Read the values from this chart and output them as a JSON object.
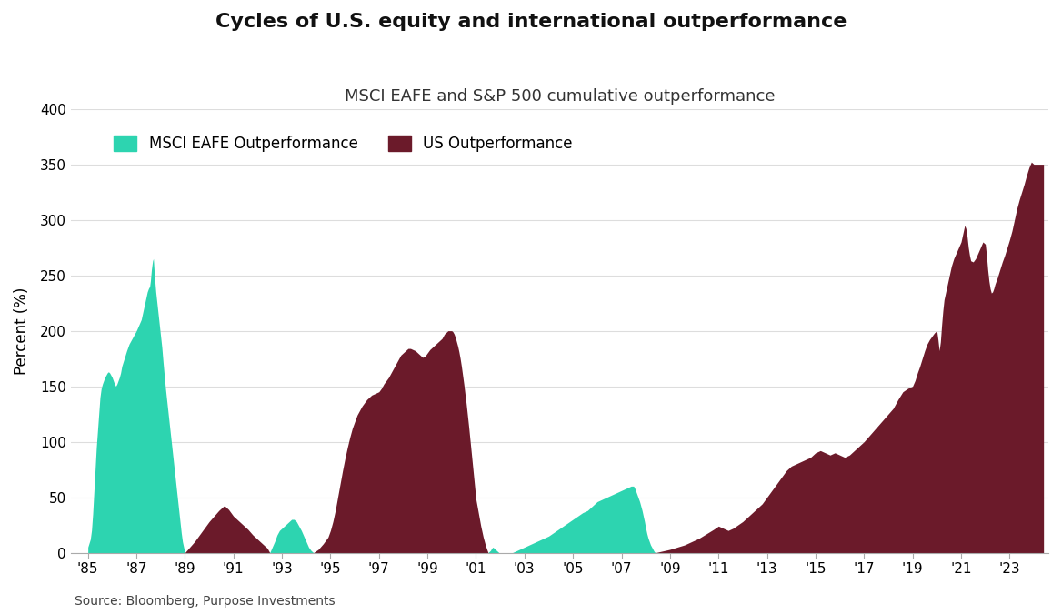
{
  "title": "Cycles of U.S. equity and international outperformance",
  "subtitle": "MSCI EAFE and S&P 500 cumulative outperformance",
  "ylabel": "Percent (%)",
  "source": "Source: Bloomberg, Purpose Investments",
  "eafe_color": "#2DD4B0",
  "us_color": "#6B1A2A",
  "background_color": "#FFFFFF",
  "ylim": [
    0,
    400
  ],
  "yticks": [
    0,
    50,
    100,
    150,
    200,
    250,
    300,
    350,
    400
  ],
  "xtick_labels": [
    "'85",
    "'87",
    "'89",
    "'91",
    "'93",
    "'95",
    "'97",
    "'99",
    "'01",
    "'03",
    "'05",
    "'07",
    "'09",
    "'11",
    "'13",
    "'15",
    "'17",
    "'19",
    "'21",
    "'23"
  ],
  "xtick_years": [
    1985,
    1987,
    1989,
    1991,
    1993,
    1995,
    1997,
    1999,
    2001,
    2003,
    2005,
    2007,
    2009,
    2011,
    2013,
    2015,
    2017,
    2019,
    2021,
    2023
  ],
  "legend_eafe": "MSCI EAFE Outperformance",
  "legend_us": "US Outperformance",
  "eafe_profile": [
    [
      1985.0,
      5
    ],
    [
      1985.1,
      12
    ],
    [
      1985.15,
      20
    ],
    [
      1985.2,
      35
    ],
    [
      1985.25,
      55
    ],
    [
      1985.3,
      75
    ],
    [
      1985.35,
      95
    ],
    [
      1985.4,
      110
    ],
    [
      1985.45,
      125
    ],
    [
      1985.5,
      140
    ],
    [
      1985.55,
      148
    ],
    [
      1985.6,
      152
    ],
    [
      1985.65,
      155
    ],
    [
      1985.7,
      158
    ],
    [
      1985.75,
      160
    ],
    [
      1985.8,
      162
    ],
    [
      1985.85,
      163
    ],
    [
      1985.9,
      162
    ],
    [
      1985.95,
      160
    ],
    [
      1986.0,
      158
    ],
    [
      1986.05,
      155
    ],
    [
      1986.1,
      152
    ],
    [
      1986.15,
      150
    ],
    [
      1986.2,
      152
    ],
    [
      1986.25,
      155
    ],
    [
      1986.3,
      158
    ],
    [
      1986.35,
      162
    ],
    [
      1986.4,
      168
    ],
    [
      1986.5,
      175
    ],
    [
      1986.6,
      182
    ],
    [
      1986.7,
      188
    ],
    [
      1986.8,
      192
    ],
    [
      1986.9,
      196
    ],
    [
      1987.0,
      200
    ],
    [
      1987.1,
      205
    ],
    [
      1987.2,
      210
    ],
    [
      1987.25,
      215
    ],
    [
      1987.3,
      220
    ],
    [
      1987.35,
      225
    ],
    [
      1987.4,
      230
    ],
    [
      1987.45,
      235
    ],
    [
      1987.5,
      238
    ],
    [
      1987.55,
      240
    ],
    [
      1987.58,
      245
    ],
    [
      1987.6,
      250
    ],
    [
      1987.62,
      255
    ],
    [
      1987.65,
      260
    ],
    [
      1987.67,
      263
    ],
    [
      1987.7,
      265
    ],
    [
      1987.72,
      258
    ],
    [
      1987.75,
      248
    ],
    [
      1987.8,
      235
    ],
    [
      1987.85,
      225
    ],
    [
      1987.9,
      215
    ],
    [
      1987.95,
      205
    ],
    [
      1988.0,
      195
    ],
    [
      1988.05,
      185
    ],
    [
      1988.1,
      172
    ],
    [
      1988.15,
      160
    ],
    [
      1988.2,
      148
    ],
    [
      1988.25,
      138
    ],
    [
      1988.3,
      128
    ],
    [
      1988.35,
      118
    ],
    [
      1988.4,
      108
    ],
    [
      1988.45,
      98
    ],
    [
      1988.5,
      88
    ],
    [
      1988.55,
      78
    ],
    [
      1988.6,
      68
    ],
    [
      1988.65,
      58
    ],
    [
      1988.7,
      48
    ],
    [
      1988.75,
      38
    ],
    [
      1988.8,
      28
    ],
    [
      1988.85,
      18
    ],
    [
      1988.9,
      10
    ],
    [
      1988.95,
      5
    ],
    [
      1989.0,
      0
    ],
    [
      1992.5,
      0
    ],
    [
      1992.6,
      5
    ],
    [
      1992.7,
      10
    ],
    [
      1992.8,
      16
    ],
    [
      1992.9,
      20
    ],
    [
      1993.0,
      22
    ],
    [
      1993.1,
      24
    ],
    [
      1993.2,
      26
    ],
    [
      1993.3,
      28
    ],
    [
      1993.4,
      30
    ],
    [
      1993.45,
      30
    ],
    [
      1993.5,
      30
    ],
    [
      1993.6,
      28
    ],
    [
      1993.7,
      24
    ],
    [
      1993.8,
      20
    ],
    [
      1993.9,
      15
    ],
    [
      1994.0,
      10
    ],
    [
      1994.1,
      5
    ],
    [
      1994.2,
      2
    ],
    [
      1994.3,
      0
    ],
    [
      2001.5,
      0
    ],
    [
      2001.55,
      1
    ],
    [
      2001.6,
      2
    ],
    [
      2001.65,
      4
    ],
    [
      2001.7,
      5
    ],
    [
      2001.75,
      4
    ],
    [
      2001.8,
      3
    ],
    [
      2001.85,
      2
    ],
    [
      2001.9,
      1
    ],
    [
      2001.95,
      0
    ],
    [
      2002.5,
      0
    ],
    [
      2002.7,
      2
    ],
    [
      2002.9,
      4
    ],
    [
      2003.0,
      5
    ],
    [
      2003.2,
      7
    ],
    [
      2003.4,
      9
    ],
    [
      2003.6,
      11
    ],
    [
      2003.8,
      13
    ],
    [
      2004.0,
      15
    ],
    [
      2004.2,
      18
    ],
    [
      2004.4,
      21
    ],
    [
      2004.6,
      24
    ],
    [
      2004.8,
      27
    ],
    [
      2005.0,
      30
    ],
    [
      2005.2,
      33
    ],
    [
      2005.4,
      36
    ],
    [
      2005.5,
      37
    ],
    [
      2005.6,
      38
    ],
    [
      2005.7,
      40
    ],
    [
      2005.8,
      42
    ],
    [
      2005.9,
      44
    ],
    [
      2006.0,
      46
    ],
    [
      2006.1,
      47
    ],
    [
      2006.2,
      48
    ],
    [
      2006.3,
      49
    ],
    [
      2006.4,
      50
    ],
    [
      2006.5,
      51
    ],
    [
      2006.6,
      52
    ],
    [
      2006.7,
      53
    ],
    [
      2006.8,
      54
    ],
    [
      2006.9,
      55
    ],
    [
      2007.0,
      56
    ],
    [
      2007.1,
      57
    ],
    [
      2007.2,
      58
    ],
    [
      2007.3,
      59
    ],
    [
      2007.4,
      60
    ],
    [
      2007.5,
      60
    ],
    [
      2007.55,
      58
    ],
    [
      2007.6,
      55
    ],
    [
      2007.65,
      52
    ],
    [
      2007.7,
      49
    ],
    [
      2007.75,
      46
    ],
    [
      2007.8,
      42
    ],
    [
      2007.85,
      38
    ],
    [
      2007.9,
      33
    ],
    [
      2007.95,
      28
    ],
    [
      2008.0,
      22
    ],
    [
      2008.05,
      17
    ],
    [
      2008.1,
      13
    ],
    [
      2008.15,
      10
    ],
    [
      2008.2,
      7
    ],
    [
      2008.25,
      5
    ],
    [
      2008.3,
      3
    ],
    [
      2008.35,
      1
    ],
    [
      2008.4,
      0
    ]
  ],
  "us_profile": [
    [
      1989.0,
      0
    ],
    [
      1989.2,
      5
    ],
    [
      1989.4,
      10
    ],
    [
      1989.6,
      16
    ],
    [
      1989.8,
      22
    ],
    [
      1990.0,
      28
    ],
    [
      1990.2,
      33
    ],
    [
      1990.4,
      38
    ],
    [
      1990.5,
      40
    ],
    [
      1990.6,
      42
    ],
    [
      1990.65,
      42
    ],
    [
      1990.7,
      41
    ],
    [
      1990.8,
      39
    ],
    [
      1990.9,
      36
    ],
    [
      1991.0,
      33
    ],
    [
      1991.2,
      29
    ],
    [
      1991.4,
      25
    ],
    [
      1991.6,
      21
    ],
    [
      1991.8,
      16
    ],
    [
      1992.0,
      12
    ],
    [
      1992.2,
      8
    ],
    [
      1992.4,
      4
    ],
    [
      1992.5,
      0
    ],
    [
      1994.3,
      0
    ],
    [
      1994.5,
      3
    ],
    [
      1994.7,
      8
    ],
    [
      1994.9,
      14
    ],
    [
      1995.0,
      20
    ],
    [
      1995.1,
      28
    ],
    [
      1995.2,
      38
    ],
    [
      1995.3,
      50
    ],
    [
      1995.4,
      62
    ],
    [
      1995.5,
      74
    ],
    [
      1995.6,
      85
    ],
    [
      1995.7,
      95
    ],
    [
      1995.8,
      104
    ],
    [
      1995.9,
      112
    ],
    [
      1996.0,
      118
    ],
    [
      1996.1,
      124
    ],
    [
      1996.2,
      128
    ],
    [
      1996.3,
      132
    ],
    [
      1996.4,
      135
    ],
    [
      1996.5,
      138
    ],
    [
      1996.6,
      140
    ],
    [
      1996.7,
      142
    ],
    [
      1996.8,
      143
    ],
    [
      1996.9,
      144
    ],
    [
      1997.0,
      145
    ],
    [
      1997.1,
      148
    ],
    [
      1997.2,
      152
    ],
    [
      1997.3,
      155
    ],
    [
      1997.4,
      158
    ],
    [
      1997.5,
      162
    ],
    [
      1997.6,
      166
    ],
    [
      1997.7,
      170
    ],
    [
      1997.8,
      174
    ],
    [
      1997.9,
      178
    ],
    [
      1998.0,
      180
    ],
    [
      1998.1,
      182
    ],
    [
      1998.2,
      184
    ],
    [
      1998.3,
      184
    ],
    [
      1998.4,
      183
    ],
    [
      1998.5,
      182
    ],
    [
      1998.6,
      180
    ],
    [
      1998.7,
      178
    ],
    [
      1998.8,
      176
    ],
    [
      1998.9,
      177
    ],
    [
      1999.0,
      180
    ],
    [
      1999.1,
      183
    ],
    [
      1999.2,
      185
    ],
    [
      1999.3,
      187
    ],
    [
      1999.4,
      189
    ],
    [
      1999.5,
      191
    ],
    [
      1999.6,
      193
    ],
    [
      1999.65,
      195
    ],
    [
      1999.7,
      197
    ],
    [
      1999.75,
      198
    ],
    [
      1999.8,
      199
    ],
    [
      1999.85,
      200
    ],
    [
      1999.9,
      200
    ],
    [
      2000.0,
      200
    ],
    [
      2000.05,
      199
    ],
    [
      2000.1,
      197
    ],
    [
      2000.15,
      194
    ],
    [
      2000.2,
      190
    ],
    [
      2000.25,
      186
    ],
    [
      2000.3,
      181
    ],
    [
      2000.35,
      175
    ],
    [
      2000.4,
      168
    ],
    [
      2000.45,
      160
    ],
    [
      2000.5,
      152
    ],
    [
      2000.55,
      143
    ],
    [
      2000.6,
      134
    ],
    [
      2000.65,
      124
    ],
    [
      2000.7,
      114
    ],
    [
      2000.75,
      103
    ],
    [
      2000.8,
      92
    ],
    [
      2000.85,
      81
    ],
    [
      2000.9,
      70
    ],
    [
      2000.95,
      59
    ],
    [
      2001.0,
      48
    ],
    [
      2001.1,
      36
    ],
    [
      2001.2,
      24
    ],
    [
      2001.3,
      14
    ],
    [
      2001.4,
      6
    ],
    [
      2001.5,
      0
    ],
    [
      2008.4,
      0
    ],
    [
      2008.6,
      1
    ],
    [
      2008.8,
      2
    ],
    [
      2009.0,
      3
    ],
    [
      2009.3,
      5
    ],
    [
      2009.6,
      7
    ],
    [
      2009.9,
      10
    ],
    [
      2010.2,
      13
    ],
    [
      2010.5,
      17
    ],
    [
      2010.8,
      21
    ],
    [
      2011.0,
      24
    ],
    [
      2011.2,
      22
    ],
    [
      2011.4,
      20
    ],
    [
      2011.6,
      22
    ],
    [
      2011.8,
      25
    ],
    [
      2012.0,
      28
    ],
    [
      2012.2,
      32
    ],
    [
      2012.4,
      36
    ],
    [
      2012.6,
      40
    ],
    [
      2012.8,
      44
    ],
    [
      2013.0,
      50
    ],
    [
      2013.2,
      56
    ],
    [
      2013.4,
      62
    ],
    [
      2013.6,
      68
    ],
    [
      2013.8,
      74
    ],
    [
      2014.0,
      78
    ],
    [
      2014.2,
      80
    ],
    [
      2014.4,
      82
    ],
    [
      2014.6,
      84
    ],
    [
      2014.8,
      86
    ],
    [
      2015.0,
      90
    ],
    [
      2015.2,
      92
    ],
    [
      2015.4,
      90
    ],
    [
      2015.6,
      88
    ],
    [
      2015.8,
      90
    ],
    [
      2016.0,
      88
    ],
    [
      2016.2,
      86
    ],
    [
      2016.4,
      88
    ],
    [
      2016.6,
      92
    ],
    [
      2016.8,
      96
    ],
    [
      2017.0,
      100
    ],
    [
      2017.2,
      105
    ],
    [
      2017.4,
      110
    ],
    [
      2017.6,
      115
    ],
    [
      2017.8,
      120
    ],
    [
      2018.0,
      125
    ],
    [
      2018.2,
      130
    ],
    [
      2018.4,
      138
    ],
    [
      2018.6,
      145
    ],
    [
      2018.8,
      148
    ],
    [
      2019.0,
      150
    ],
    [
      2019.1,
      155
    ],
    [
      2019.2,
      162
    ],
    [
      2019.3,
      168
    ],
    [
      2019.4,
      175
    ],
    [
      2019.5,
      182
    ],
    [
      2019.6,
      188
    ],
    [
      2019.7,
      192
    ],
    [
      2019.8,
      195
    ],
    [
      2019.9,
      198
    ],
    [
      2020.0,
      200
    ],
    [
      2020.05,
      192
    ],
    [
      2020.1,
      182
    ],
    [
      2020.15,
      190
    ],
    [
      2020.2,
      205
    ],
    [
      2020.25,
      218
    ],
    [
      2020.3,
      228
    ],
    [
      2020.4,
      238
    ],
    [
      2020.5,
      248
    ],
    [
      2020.6,
      258
    ],
    [
      2020.7,
      265
    ],
    [
      2020.8,
      270
    ],
    [
      2020.9,
      275
    ],
    [
      2021.0,
      280
    ],
    [
      2021.1,
      290
    ],
    [
      2021.15,
      295
    ],
    [
      2021.2,
      292
    ],
    [
      2021.25,
      285
    ],
    [
      2021.3,
      275
    ],
    [
      2021.35,
      268
    ],
    [
      2021.4,
      263
    ],
    [
      2021.5,
      262
    ],
    [
      2021.6,
      265
    ],
    [
      2021.7,
      270
    ],
    [
      2021.8,
      275
    ],
    [
      2021.9,
      280
    ],
    [
      2022.0,
      278
    ],
    [
      2022.05,
      268
    ],
    [
      2022.1,
      255
    ],
    [
      2022.15,
      245
    ],
    [
      2022.2,
      238
    ],
    [
      2022.25,
      234
    ],
    [
      2022.3,
      235
    ],
    [
      2022.35,
      238
    ],
    [
      2022.4,
      242
    ],
    [
      2022.5,
      248
    ],
    [
      2022.6,
      255
    ],
    [
      2022.7,
      262
    ],
    [
      2022.8,
      268
    ],
    [
      2022.9,
      275
    ],
    [
      2023.0,
      282
    ],
    [
      2023.1,
      290
    ],
    [
      2023.2,
      300
    ],
    [
      2023.3,
      310
    ],
    [
      2023.4,
      318
    ],
    [
      2023.5,
      325
    ],
    [
      2023.6,
      332
    ],
    [
      2023.7,
      340
    ],
    [
      2023.8,
      347
    ],
    [
      2023.9,
      352
    ],
    [
      2024.0,
      350
    ],
    [
      2024.1,
      350
    ],
    [
      2024.3,
      350
    ],
    [
      2024.4,
      350
    ]
  ]
}
